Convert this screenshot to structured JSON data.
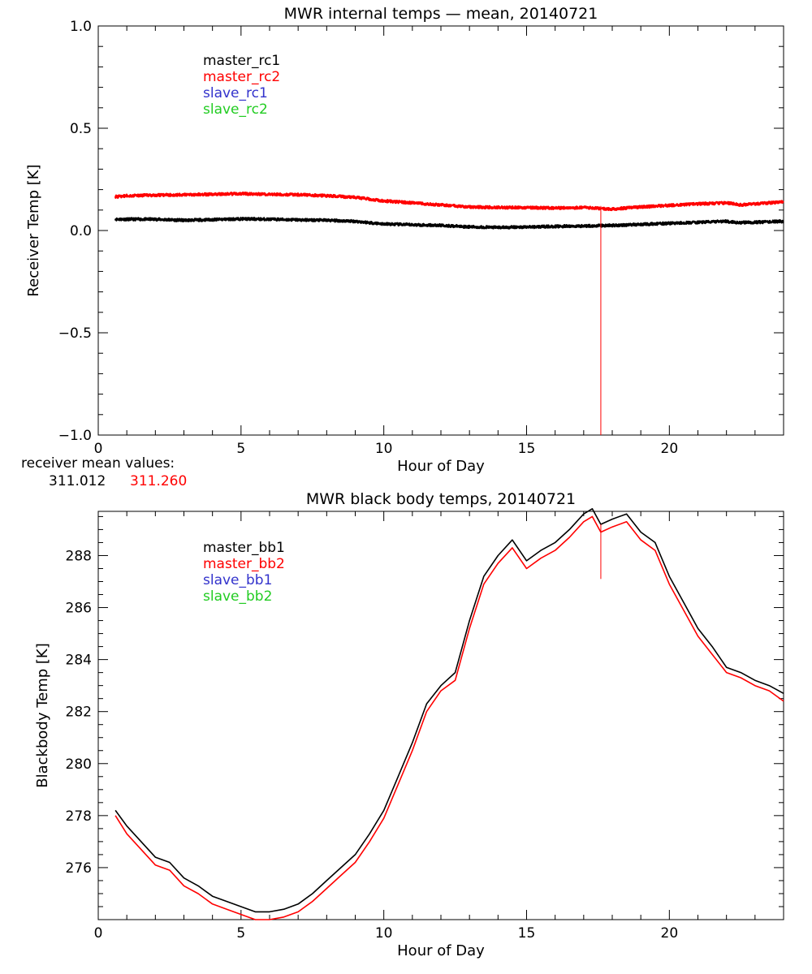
{
  "colors": {
    "master_1": "#000000",
    "master_2": "#ff0000",
    "slave_1": "#3333cc",
    "slave_2": "#22cc22",
    "axes": "#000000",
    "background": "#ffffff"
  },
  "receiver_means": {
    "label": "receiver mean values:",
    "values": [
      "311.012",
      "311.260"
    ]
  },
  "chart_data": [
    {
      "type": "line",
      "title": "MWR internal temps — mean, 20140721",
      "xlabel": "Hour of Day",
      "ylabel": "Receiver Temp [K]",
      "xlim": [
        0,
        24
      ],
      "ylim": [
        -1.0,
        1.0
      ],
      "xticks": [
        0,
        5,
        10,
        15,
        20
      ],
      "xtick_labels": [
        "0",
        "5",
        "10",
        "15",
        "20"
      ],
      "yticks": [
        -1.0,
        -0.5,
        0.0,
        0.5,
        1.0
      ],
      "ytick_labels": [
        "−1.0",
        "−0.5",
        "0.0",
        "0.5",
        "1.0"
      ],
      "legend_placement": "top-left",
      "noise": 0.006,
      "spike": {
        "x": 17.6,
        "y_from": -1.0,
        "y_to": 0.12,
        "series": "master_rc2"
      },
      "series": [
        {
          "name": "master_rc1",
          "color": "#000000",
          "x": [
            0.6,
            1,
            2,
            3,
            4,
            5,
            6,
            7,
            8,
            9,
            10,
            11,
            12,
            13,
            14,
            15,
            16,
            17,
            18,
            19,
            20,
            21,
            22,
            22.5,
            23,
            24
          ],
          "y": [
            0.055,
            0.055,
            0.055,
            0.05,
            0.053,
            0.057,
            0.055,
            0.052,
            0.05,
            0.045,
            0.032,
            0.028,
            0.025,
            0.018,
            0.015,
            0.017,
            0.02,
            0.022,
            0.025,
            0.03,
            0.035,
            0.04,
            0.045,
            0.038,
            0.04,
            0.045
          ]
        },
        {
          "name": "master_rc2",
          "color": "#ff0000",
          "x": [
            0.6,
            1,
            2,
            3,
            4,
            5,
            6,
            7,
            8,
            9,
            10,
            11,
            12,
            13,
            14,
            15,
            16,
            17,
            18,
            19,
            20,
            21,
            22,
            22.5,
            23,
            24
          ],
          "y": [
            0.165,
            0.17,
            0.173,
            0.175,
            0.177,
            0.18,
            0.177,
            0.175,
            0.17,
            0.162,
            0.145,
            0.135,
            0.125,
            0.115,
            0.113,
            0.112,
            0.11,
            0.112,
            0.105,
            0.115,
            0.123,
            0.13,
            0.135,
            0.125,
            0.13,
            0.14
          ]
        },
        {
          "name": "slave_rc1",
          "color": "#3333cc",
          "x": [],
          "y": []
        },
        {
          "name": "slave_rc2",
          "color": "#22cc22",
          "x": [],
          "y": []
        }
      ]
    },
    {
      "type": "line",
      "title": "MWR black body temps, 20140721",
      "xlabel": "Hour of Day",
      "ylabel": "Blackbody Temp [K]",
      "xlim": [
        0,
        24
      ],
      "ylim": [
        274.0,
        289.7
      ],
      "xticks": [
        0,
        5,
        10,
        15,
        20
      ],
      "xtick_labels": [
        "0",
        "5",
        "10",
        "15",
        "20"
      ],
      "yticks": [
        276,
        278,
        280,
        282,
        284,
        286,
        288
      ],
      "ytick_labels": [
        "276",
        "278",
        "280",
        "282",
        "284",
        "286",
        "288"
      ],
      "legend_placement": "top-left",
      "noise": 0,
      "spike": {
        "x": 17.6,
        "y_from": 287.1,
        "y_to": 289.2,
        "series": "master_bb2"
      },
      "series": [
        {
          "name": "master_bb1",
          "color": "#000000",
          "x": [
            0.6,
            1,
            2,
            2.5,
            3,
            3.5,
            4,
            4.5,
            5,
            5.5,
            6,
            6.5,
            7,
            7.5,
            8,
            8.5,
            9,
            9.5,
            10,
            10.5,
            11,
            11.5,
            12,
            12.5,
            13,
            13.5,
            14,
            14.5,
            15,
            15.5,
            16,
            16.5,
            17,
            17.3,
            17.6,
            18,
            18.5,
            19,
            19.5,
            20,
            20.5,
            21,
            21.5,
            22,
            22.5,
            23,
            23.5,
            24
          ],
          "y": [
            278.2,
            277.6,
            276.4,
            276.2,
            275.6,
            275.3,
            274.9,
            274.7,
            274.5,
            274.3,
            274.3,
            274.4,
            274.6,
            275.0,
            275.5,
            276.0,
            276.5,
            277.3,
            278.2,
            279.5,
            280.8,
            282.3,
            283.0,
            283.5,
            285.5,
            287.2,
            288.0,
            288.6,
            287.8,
            288.2,
            288.5,
            289.0,
            289.6,
            289.8,
            289.2,
            289.4,
            289.6,
            288.9,
            288.5,
            287.2,
            286.2,
            285.2,
            284.5,
            283.7,
            283.5,
            283.2,
            283.0,
            282.7
          ]
        },
        {
          "name": "master_bb2",
          "color": "#ff0000",
          "x": [
            0.6,
            1,
            2,
            2.5,
            3,
            3.5,
            4,
            4.5,
            5,
            5.5,
            6,
            6.5,
            7,
            7.5,
            8,
            8.5,
            9,
            9.5,
            10,
            10.5,
            11,
            11.5,
            12,
            12.5,
            13,
            13.5,
            14,
            14.5,
            15,
            15.5,
            16,
            16.5,
            17,
            17.3,
            17.6,
            18,
            18.5,
            19,
            19.5,
            20,
            20.5,
            21,
            21.5,
            22,
            22.5,
            23,
            23.5,
            24
          ],
          "y": [
            278.0,
            277.3,
            276.1,
            275.9,
            275.3,
            275.0,
            274.6,
            274.4,
            274.2,
            274.0,
            274.0,
            274.1,
            274.3,
            274.7,
            275.2,
            275.7,
            276.2,
            277.0,
            277.9,
            279.2,
            280.5,
            282.0,
            282.8,
            283.2,
            285.2,
            286.9,
            287.7,
            288.3,
            287.5,
            287.9,
            288.2,
            288.7,
            289.3,
            289.5,
            288.9,
            289.1,
            289.3,
            288.6,
            288.2,
            286.9,
            285.9,
            284.9,
            284.2,
            283.5,
            283.3,
            283.0,
            282.8,
            282.4
          ]
        },
        {
          "name": "slave_bb1",
          "color": "#3333cc",
          "x": [],
          "y": []
        },
        {
          "name": "slave_bb2",
          "color": "#22cc22",
          "x": [],
          "y": []
        }
      ]
    }
  ]
}
